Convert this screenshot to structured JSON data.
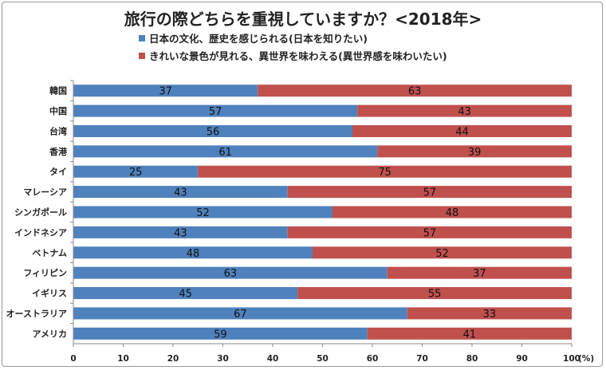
{
  "chart_data": {
    "type": "bar",
    "orientation": "horizontal",
    "stacked": "percent",
    "title": "旅行の際どちらを重視していますか？<2018年>",
    "categories": [
      "韓国",
      "中国",
      "台湾",
      "香港",
      "タイ",
      "マレーシア",
      "シンガポール",
      "インドネシア",
      "ベトナム",
      "フィリピン",
      "イギリス",
      "オーストラリア",
      "アメリカ"
    ],
    "series": [
      {
        "name": "日本の文化、歴史を感じられる(日本を知りたい)",
        "color": "#4f81bd",
        "values": [
          37,
          57,
          56,
          61,
          25,
          43,
          52,
          43,
          48,
          63,
          45,
          67,
          59
        ]
      },
      {
        "name": "きれいな景色が見れる、異世界を味わえる(異世界感を味わいたい)",
        "color": "#c0504d",
        "values": [
          63,
          43,
          44,
          39,
          75,
          57,
          48,
          57,
          52,
          37,
          55,
          33,
          41
        ]
      }
    ],
    "xlim": [
      0,
      100
    ],
    "xticks": [
      0,
      10,
      20,
      30,
      40,
      50,
      60,
      70,
      80,
      90,
      100
    ],
    "xunit": "(%)",
    "grid": false,
    "legend": "top"
  }
}
